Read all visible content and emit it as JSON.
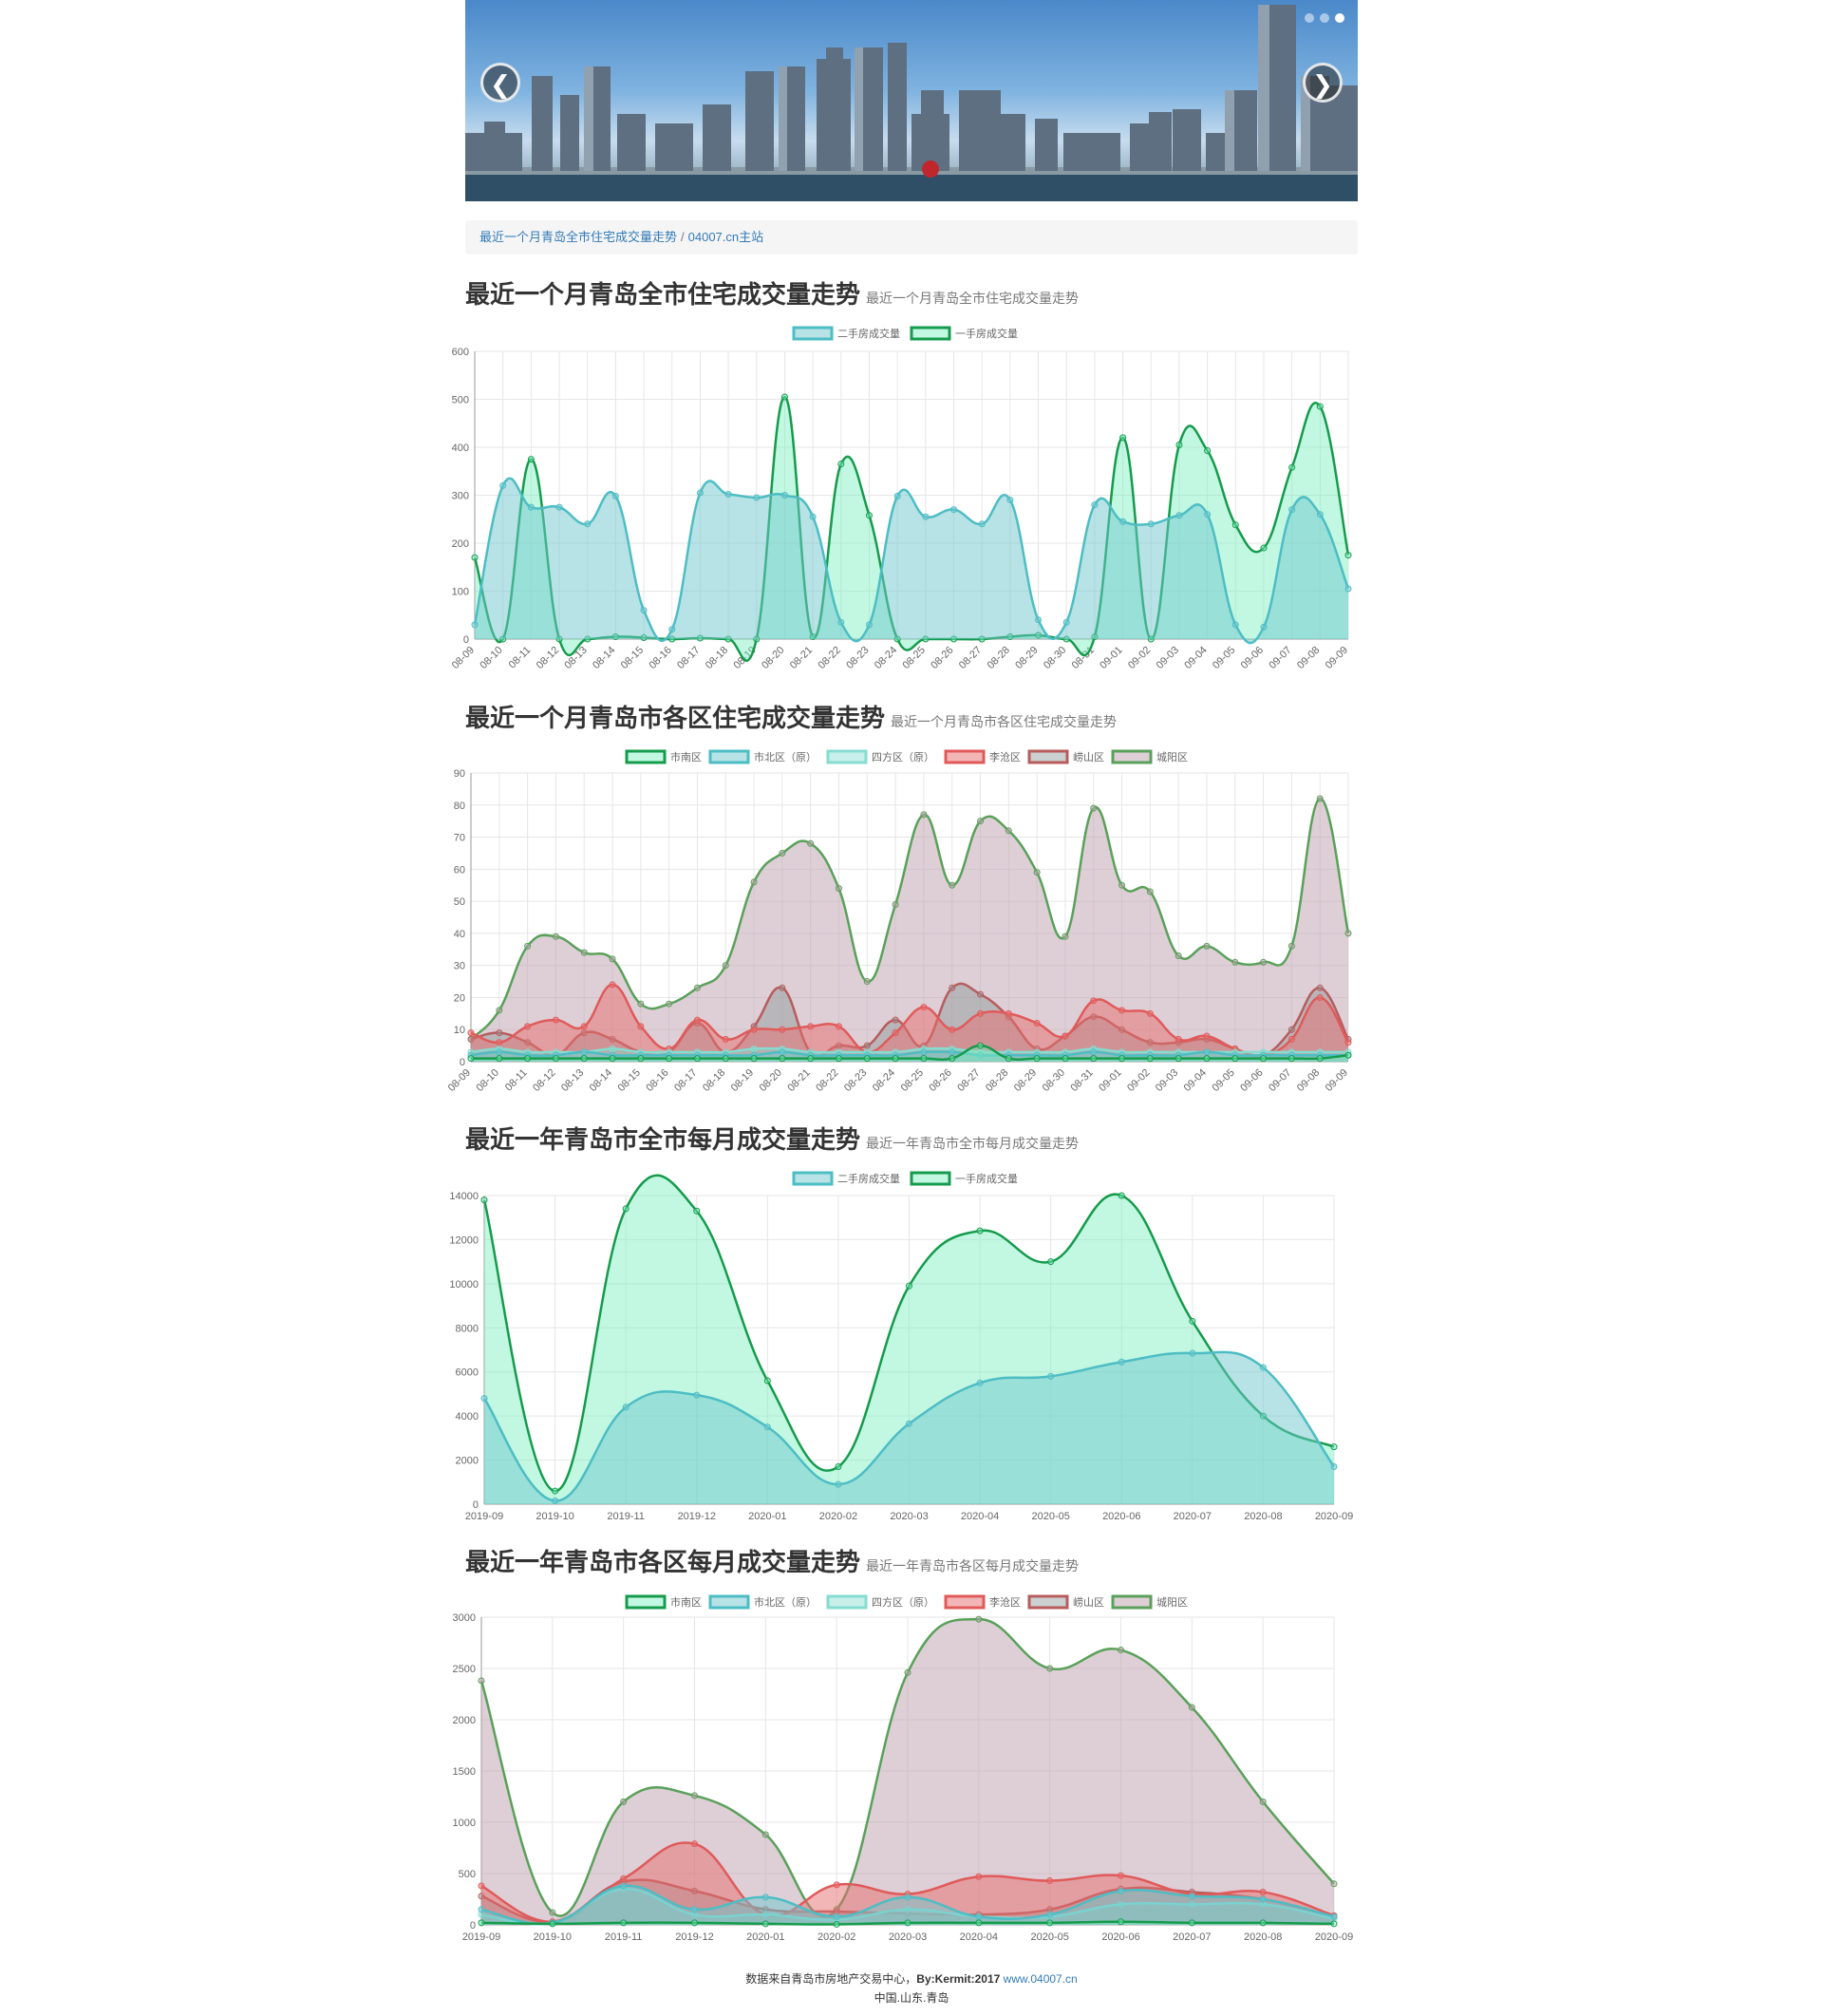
{
  "banner": {
    "prev_label": "❮",
    "next_label": "❯"
  },
  "breadcrumb": {
    "current": "最近一个月青岛全市住宅成交量走势",
    "separator": "/",
    "home": "04007.cn主站"
  },
  "sections": [
    {
      "title": "最近一个月青岛全市住宅成交量走势",
      "subtitle": "最近一个月青岛全市住宅成交量走势"
    },
    {
      "title": "最近一个月青岛市各区住宅成交量走势",
      "subtitle": "最近一个月青岛市各区住宅成交量走势"
    },
    {
      "title": "最近一年青岛市全市每月成交量走势",
      "subtitle": "最近一年青岛市全市每月成交量走势"
    },
    {
      "title": "最近一年青岛市各区每月成交量走势",
      "subtitle": "最近一年青岛市各区每月成交量走势"
    }
  ],
  "footer": {
    "text": "数据来自青岛市房地产交易中心，",
    "by": "By:Kermit:2017",
    "link": "www.04007.cn",
    "location": "中国.山东.青岛"
  },
  "colors": {
    "teal_line": "#4dbdc4",
    "teal_fill": "rgba(112,200,206,0.5)",
    "green_line": "#159b4c",
    "green_fill": "rgba(120,240,190,0.45)",
    "sifang_line": "#86dcd0",
    "sifang_fill": "rgba(134,220,208,0.45)",
    "licang_line": "#e05a5a",
    "licang_fill": "rgba(232,110,110,0.5)",
    "laoshan_line": "#b85c5c",
    "laoshan_fill": "rgba(140,150,150,0.45)",
    "chengyang_line": "#5aa05a",
    "chengyang_fill": "rgba(190,160,175,0.5)"
  },
  "chart_data": [
    {
      "type": "area",
      "categories": [
        "08-09",
        "08-10",
        "08-11",
        "08-12",
        "08-13",
        "08-14",
        "08-15",
        "08-16",
        "08-17",
        "08-18",
        "08-19",
        "08-20",
        "08-21",
        "08-22",
        "08-23",
        "08-24",
        "08-25",
        "08-26",
        "08-27",
        "08-28",
        "08-29",
        "08-30",
        "08-31",
        "09-01",
        "09-02",
        "09-03",
        "09-04",
        "09-05",
        "09-06",
        "09-07",
        "09-08",
        "09-09"
      ],
      "series": [
        {
          "name": "二手房成交量",
          "values": [
            30,
            320,
            275,
            275,
            240,
            298,
            60,
            20,
            305,
            302,
            295,
            300,
            255,
            35,
            30,
            298,
            255,
            270,
            240,
            290,
            40,
            35,
            280,
            245,
            240,
            258,
            260,
            30,
            25,
            270,
            260,
            105
          ]
        },
        {
          "name": "一手房成交量",
          "values": [
            170,
            0,
            375,
            0,
            0,
            5,
            3,
            0,
            2,
            0,
            0,
            505,
            5,
            365,
            258,
            0,
            0,
            0,
            0,
            5,
            8,
            0,
            5,
            420,
            0,
            405,
            393,
            238,
            190,
            358,
            485,
            175
          ]
        }
      ],
      "ylim": [
        0,
        600
      ],
      "yticks": [
        0,
        100,
        200,
        300,
        400,
        500,
        600
      ],
      "grid": true,
      "legend": "top-center"
    },
    {
      "type": "area",
      "categories": [
        "08-09",
        "08-10",
        "08-11",
        "08-12",
        "08-13",
        "08-14",
        "08-15",
        "08-16",
        "08-17",
        "08-18",
        "08-19",
        "08-20",
        "08-21",
        "08-22",
        "08-23",
        "08-24",
        "08-25",
        "08-26",
        "08-27",
        "08-28",
        "08-29",
        "08-30",
        "08-31",
        "09-01",
        "09-02",
        "09-03",
        "09-04",
        "09-05",
        "09-06",
        "09-07",
        "09-08",
        "09-09"
      ],
      "series": [
        {
          "name": "市南区",
          "values": [
            1,
            1,
            1,
            1,
            1,
            1,
            1,
            1,
            1,
            1,
            1,
            1,
            1,
            1,
            1,
            1,
            1,
            1,
            5,
            1,
            1,
            1,
            1,
            1,
            1,
            1,
            1,
            1,
            1,
            1,
            1,
            2
          ]
        },
        {
          "name": "市北区（原）",
          "values": [
            2,
            3,
            2,
            2,
            3,
            2,
            2,
            2,
            2,
            2,
            2,
            3,
            2,
            2,
            2,
            2,
            3,
            3,
            2,
            2,
            2,
            2,
            3,
            2,
            2,
            2,
            3,
            2,
            2,
            2,
            2,
            2
          ]
        },
        {
          "name": "四方区（原）",
          "values": [
            3,
            4,
            3,
            3,
            3,
            4,
            3,
            3,
            3,
            3,
            4,
            4,
            3,
            3,
            3,
            3,
            4,
            4,
            3,
            3,
            3,
            3,
            4,
            3,
            3,
            3,
            3,
            3,
            3,
            3,
            3,
            3
          ]
        },
        {
          "name": "李沧区",
          "values": [
            9,
            6,
            11,
            13,
            11,
            24,
            11,
            4,
            13,
            7,
            10,
            10,
            11,
            11,
            3,
            9,
            17,
            10,
            15,
            15,
            12,
            8,
            19,
            16,
            15,
            7,
            8,
            4,
            2,
            7,
            20,
            6
          ]
        },
        {
          "name": "崂山区",
          "values": [
            7,
            9,
            6,
            2,
            9,
            7,
            3,
            3,
            12,
            3,
            11,
            23,
            3,
            5,
            5,
            13,
            5,
            23,
            21,
            14,
            4,
            8,
            14,
            10,
            6,
            6,
            7,
            4,
            2,
            10,
            23,
            7
          ]
        },
        {
          "name": "城阳区",
          "values": [
            7,
            16,
            36,
            39,
            34,
            32,
            18,
            18,
            23,
            30,
            56,
            65,
            68,
            54,
            25,
            49,
            77,
            55,
            75,
            72,
            59,
            39,
            79,
            55,
            53,
            33,
            36,
            31,
            31,
            36,
            82,
            40
          ]
        }
      ],
      "ylim": [
        0,
        90
      ],
      "yticks": [
        0,
        10,
        20,
        30,
        40,
        50,
        60,
        70,
        80,
        90
      ],
      "grid": true,
      "legend": "top-center"
    },
    {
      "type": "area",
      "categories": [
        "2019-09",
        "2019-10",
        "2019-11",
        "2019-12",
        "2020-01",
        "2020-02",
        "2020-03",
        "2020-04",
        "2020-05",
        "2020-06",
        "2020-07",
        "2020-08",
        "2020-09"
      ],
      "series": [
        {
          "name": "二手房成交量",
          "values": [
            4800,
            150,
            4400,
            4950,
            3500,
            900,
            3650,
            5500,
            5800,
            6450,
            6850,
            6200,
            1700
          ]
        },
        {
          "name": "一手房成交量",
          "values": [
            13800,
            600,
            13400,
            13300,
            5600,
            1700,
            9900,
            12400,
            11000,
            14000,
            8300,
            4000,
            2600
          ]
        }
      ],
      "ylim": [
        0,
        14000
      ],
      "yticks": [
        0,
        2000,
        4000,
        6000,
        8000,
        10000,
        12000,
        14000
      ],
      "grid": true,
      "legend": "top-center"
    },
    {
      "type": "area",
      "categories": [
        "2019-09",
        "2019-10",
        "2019-11",
        "2019-12",
        "2020-01",
        "2020-02",
        "2020-03",
        "2020-04",
        "2020-05",
        "2020-06",
        "2020-07",
        "2020-08",
        "2020-09"
      ],
      "series": [
        {
          "name": "市南区",
          "values": [
            20,
            10,
            20,
            20,
            10,
            5,
            20,
            20,
            20,
            30,
            20,
            20,
            10
          ]
        },
        {
          "name": "市北区（原）",
          "values": [
            150,
            20,
            380,
            150,
            270,
            80,
            270,
            80,
            100,
            330,
            280,
            250,
            80
          ]
        },
        {
          "name": "四方区（原）",
          "values": [
            100,
            20,
            350,
            100,
            100,
            50,
            150,
            80,
            80,
            200,
            200,
            200,
            60
          ]
        },
        {
          "name": "李沧区",
          "values": [
            380,
            30,
            450,
            790,
            100,
            390,
            300,
            470,
            430,
            480,
            300,
            320,
            90
          ]
        },
        {
          "name": "崂山区",
          "values": [
            280,
            30,
            420,
            330,
            150,
            130,
            110,
            100,
            150,
            350,
            320,
            250,
            80
          ]
        },
        {
          "name": "城阳区",
          "values": [
            2380,
            120,
            1200,
            1260,
            880,
            150,
            2460,
            2980,
            2500,
            2680,
            2120,
            1200,
            400
          ]
        }
      ],
      "ylim": [
        0,
        3000
      ],
      "yticks": [
        0,
        500,
        1000,
        1500,
        2000,
        2500,
        3000
      ],
      "grid": true,
      "legend": "top-center"
    }
  ]
}
